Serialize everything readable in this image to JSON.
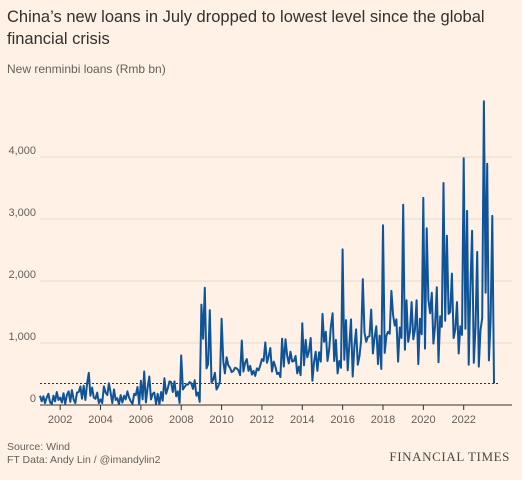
{
  "header": {
    "title": "China’s new loans in July dropped to lowest level since the global financial crisis",
    "subtitle": "New renminbi loans (Rmb bn)"
  },
  "footer": {
    "source": "Source: Wind",
    "credit": "FT Data: Andy Lin / @imandylin2",
    "brand": "FINANCIAL TIMES"
  },
  "colors": {
    "background": "#fff1e5",
    "line": "#0f5499",
    "grid": "#e6d9ce",
    "reference": "#33302e"
  },
  "chart_data": {
    "type": "line",
    "ylabel": "New renminbi loans (Rmb bn)",
    "ylim": [
      0,
      5000
    ],
    "xlim": [
      2001,
      2023.7
    ],
    "y_ticks": [
      {
        "value": 0,
        "label": "0"
      },
      {
        "value": 1000,
        "label": "1,000"
      },
      {
        "value": 2000,
        "label": "2,000"
      },
      {
        "value": 3000,
        "label": "3,000"
      },
      {
        "value": 4000,
        "label": "4,000"
      }
    ],
    "x_ticks": [
      {
        "value": 2002,
        "label": "2002"
      },
      {
        "value": 2004,
        "label": "2004"
      },
      {
        "value": 2006,
        "label": "2006"
      },
      {
        "value": 2008,
        "label": "2008"
      },
      {
        "value": 2010,
        "label": "2010"
      },
      {
        "value": 2012,
        "label": "2012"
      },
      {
        "value": 2014,
        "label": "2014"
      },
      {
        "value": 2016,
        "label": "2016"
      },
      {
        "value": 2018,
        "label": "2018"
      },
      {
        "value": 2020,
        "label": "2020"
      },
      {
        "value": 2022,
        "label": "2022"
      }
    ],
    "grid": true,
    "reference_line": {
      "value": 346,
      "style": "dashed"
    },
    "series": [
      {
        "start": "2001-01",
        "frequency": "monthly",
        "values": [
          150,
          60,
          140,
          30,
          120,
          180,
          40,
          20,
          150,
          60,
          210,
          80,
          120,
          40,
          190,
          20,
          160,
          220,
          50,
          240,
          90,
          30,
          200,
          210,
          300,
          100,
          310,
          80,
          350,
          520,
          150,
          280,
          120,
          100,
          200,
          30,
          90,
          30,
          300,
          200,
          160,
          350,
          200,
          30,
          250,
          80,
          110,
          10,
          160,
          40,
          150,
          90,
          220,
          120,
          60,
          20,
          180,
          160,
          290,
          10,
          390,
          90,
          540,
          40,
          280,
          460,
          90,
          180,
          200,
          20,
          180,
          10,
          210,
          70,
          430,
          180,
          270,
          380,
          370,
          210,
          380,
          140,
          220,
          30,
          800,
          250,
          290,
          330,
          330,
          370,
          350,
          260,
          400,
          150,
          200,
          50,
          1620,
          1070,
          1890,
          590,
          660,
          1530,
          360,
          410,
          520,
          250,
          300,
          380,
          1390,
          700,
          510,
          770,
          640,
          600,
          530,
          550,
          600,
          590,
          560,
          480,
          1040,
          540,
          680,
          740,
          550,
          630,
          490,
          550,
          470,
          590,
          560,
          640,
          740,
          710,
          1010,
          680,
          790,
          920,
          540,
          700,
          620,
          500,
          520,
          450,
          1070,
          620,
          1060,
          790,
          670,
          860,
          700,
          710,
          790,
          510,
          620,
          480,
          1320,
          640,
          1050,
          770,
          870,
          1080,
          390,
          700,
          860,
          550,
          850,
          700,
          1470,
          1020,
          1180,
          710,
          900,
          1270,
          1480,
          710,
          1050,
          510,
          710,
          600,
          2510,
          730,
          1370,
          560,
          990,
          1380,
          460,
          950,
          1220,
          650,
          790,
          1040,
          2030,
          1170,
          1020,
          1100,
          1110,
          1540,
          830,
          1090,
          1270,
          660,
          1120,
          580,
          2900,
          840,
          1120,
          1180,
          1150,
          1840,
          1450,
          1280,
          1380,
          700,
          1250,
          1080,
          3230,
          890,
          1690,
          1020,
          1180,
          1660,
          1060,
          1210,
          1690,
          660,
          1390,
          1140,
          3340,
          910,
          2850,
          1700,
          1480,
          1810,
          990,
          1280,
          1900,
          690,
          1430,
          1260,
          3580,
          1360,
          2730,
          1470,
          1500,
          2120,
          1080,
          1220,
          1660,
          830,
          1270,
          1130,
          3980,
          1230,
          3130,
          650,
          1890,
          2810,
          680,
          1250,
          2470,
          620,
          1210,
          1400,
          4900,
          1810,
          3890,
          720,
          1360,
          3050,
          346
        ]
      }
    ]
  }
}
